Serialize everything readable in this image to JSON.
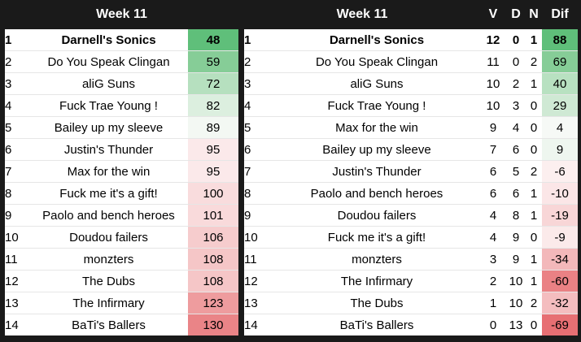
{
  "left": {
    "header": "Week 11",
    "rows": [
      {
        "rank": "1",
        "team": "Darnell's Sonics",
        "score": "48",
        "bg": "#5fbf7a"
      },
      {
        "rank": "2",
        "team": "Do You Speak Clingan",
        "score": "59",
        "bg": "#86cd97"
      },
      {
        "rank": "3",
        "team": "aliG Suns",
        "score": "72",
        "bg": "#b6e0bf"
      },
      {
        "rank": "4",
        "team": "Fuck Trae Young !",
        "score": "82",
        "bg": "#dcefdf"
      },
      {
        "rank": "5",
        "team": "Bailey up my sleeve",
        "score": "89",
        "bg": "#f3f8f3"
      },
      {
        "rank": "6",
        "team": "Justin's Thunder",
        "score": "95",
        "bg": "#fbe9ea"
      },
      {
        "rank": "7",
        "team": "Max for the win",
        "score": "95",
        "bg": "#fbe9ea"
      },
      {
        "rank": "8",
        "team": "Fuck me it's a gift!",
        "score": "100",
        "bg": "#f9dcdd"
      },
      {
        "rank": "9",
        "team": "Paolo and bench heroes",
        "score": "101",
        "bg": "#f9dadb"
      },
      {
        "rank": "10",
        "team": "Doudou failers",
        "score": "106",
        "bg": "#f6cccd"
      },
      {
        "rank": "11",
        "team": "monzters",
        "score": "108",
        "bg": "#f5c6c7"
      },
      {
        "rank": "12",
        "team": "The Dubs",
        "score": "108",
        "bg": "#f5c6c7"
      },
      {
        "rank": "13",
        "team": "The Infirmary",
        "score": "123",
        "bg": "#ee9c9e"
      },
      {
        "rank": "14",
        "team": "BaTi's Ballers",
        "score": "130",
        "bg": "#ea8487"
      }
    ]
  },
  "right": {
    "header": "Week 11",
    "col_v": "V",
    "col_d": "D",
    "col_n": "N",
    "col_dif": "Dif",
    "rows": [
      {
        "rank": "1",
        "team": "Darnell's Sonics",
        "v": "12",
        "d": "0",
        "n": "1",
        "dif": "88",
        "bg": "#5fbf7a"
      },
      {
        "rank": "2",
        "team": "Do You Speak Clingan",
        "v": "11",
        "d": "0",
        "n": "2",
        "dif": "69",
        "bg": "#86cd97"
      },
      {
        "rank": "3",
        "team": "aliG Suns",
        "v": "10",
        "d": "2",
        "n": "1",
        "dif": "40",
        "bg": "#b8e1c1"
      },
      {
        "rank": "4",
        "team": "Fuck Trae Young !",
        "v": "10",
        "d": "3",
        "n": "0",
        "dif": "29",
        "bg": "#cfe9d4"
      },
      {
        "rank": "5",
        "team": "Max for the win",
        "v": "9",
        "d": "4",
        "n": "0",
        "dif": "4",
        "bg": "#f6f9f6"
      },
      {
        "rank": "6",
        "team": "Bailey up my sleeve",
        "v": "7",
        "d": "6",
        "n": "0",
        "dif": "9",
        "bg": "#eef6ef"
      },
      {
        "rank": "7",
        "team": "Justin's Thunder",
        "v": "6",
        "d": "5",
        "n": "2",
        "dif": "-6",
        "bg": "#fcefef"
      },
      {
        "rank": "8",
        "team": "Paolo and bench heroes",
        "v": "6",
        "d": "6",
        "n": "1",
        "dif": "-10",
        "bg": "#fbe6e7"
      },
      {
        "rank": "9",
        "team": "Doudou failers",
        "v": "4",
        "d": "8",
        "n": "1",
        "dif": "-19",
        "bg": "#f8d6d7"
      },
      {
        "rank": "10",
        "team": "Fuck me it's a gift!",
        "v": "4",
        "d": "9",
        "n": "0",
        "dif": "-9",
        "bg": "#fbeaea"
      },
      {
        "rank": "11",
        "team": "monzters",
        "v": "3",
        "d": "9",
        "n": "1",
        "dif": "-34",
        "bg": "#f3b8ba"
      },
      {
        "rank": "12",
        "team": "The Infirmary",
        "v": "2",
        "d": "10",
        "n": "1",
        "dif": "-60",
        "bg": "#ea8184"
      },
      {
        "rank": "13",
        "team": "The Dubs",
        "v": "1",
        "d": "10",
        "n": "2",
        "dif": "-32",
        "bg": "#f4bdbf"
      },
      {
        "rank": "14",
        "team": "BaTi's Ballers",
        "v": "0",
        "d": "13",
        "n": "0",
        "dif": "-69",
        "bg": "#e76f73"
      }
    ]
  }
}
